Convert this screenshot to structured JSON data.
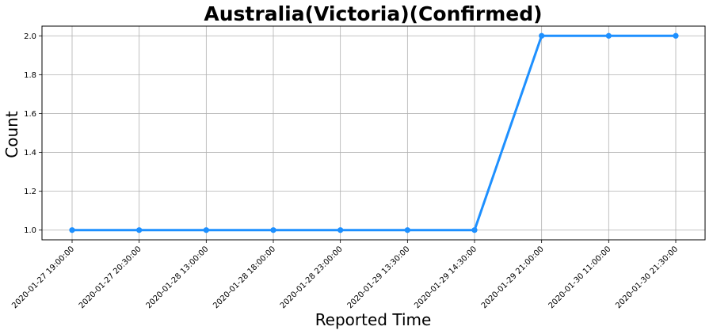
{
  "chart_data": {
    "type": "line",
    "title": "Australia(Victoria)(Confirmed)",
    "xlabel": "Reported Time",
    "ylabel": "Count",
    "categories": [
      "2020-01-27 19:00:00",
      "2020-01-27 20:30:00",
      "2020-01-28 13:00:00",
      "2020-01-28 18:00:00",
      "2020-01-28 23:00:00",
      "2020-01-29 13:30:00",
      "2020-01-29 14:30:00",
      "2020-01-29 21:00:00",
      "2020-01-30 11:00:00",
      "2020-01-30 21:30:00"
    ],
    "values": [
      1,
      1,
      1,
      1,
      1,
      1,
      1,
      2,
      2,
      2
    ],
    "ylim": [
      0.95,
      2.05
    ],
    "yticks": [
      1.0,
      1.2,
      1.4,
      1.6,
      1.8,
      2.0
    ],
    "ytick_labels": [
      "1.0",
      "1.2",
      "1.4",
      "1.6",
      "1.8",
      "2.0"
    ],
    "grid": true,
    "line_color": "#1e90ff",
    "marker": "circle"
  }
}
